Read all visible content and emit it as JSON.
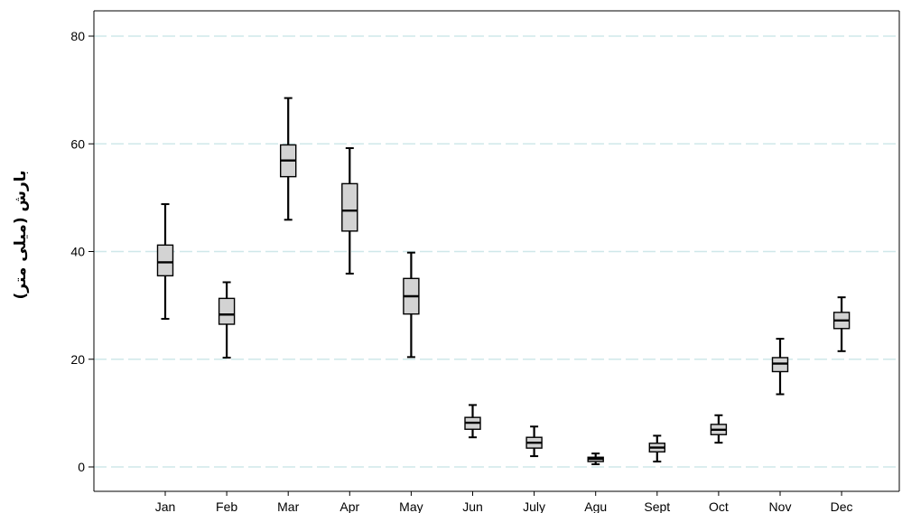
{
  "chart_data": {
    "type": "boxplot",
    "title": "",
    "xlabel": "",
    "ylabel": "بارش (میلی متر)",
    "ylim": [
      -4,
      84
    ],
    "yticks": [
      0,
      20,
      40,
      60,
      80
    ],
    "grid": true,
    "colors": {
      "box_fill": "#d3d3d3",
      "stroke": "#000000",
      "grid": "#cfe8ea",
      "axis": "#000000"
    },
    "categories": [
      "Jan",
      "Feb",
      "Mar",
      "Apr",
      "May",
      "Jun",
      "July",
      "Agu",
      "Sept",
      "Oct",
      "Nov",
      "Dec"
    ],
    "boxes": [
      {
        "min": 27.5,
        "q1": 35.5,
        "median": 38.0,
        "q3": 41.2,
        "max": 48.8
      },
      {
        "min": 20.3,
        "q1": 26.5,
        "median": 28.3,
        "q3": 31.3,
        "max": 34.3
      },
      {
        "min": 45.9,
        "q1": 53.9,
        "median": 56.9,
        "q3": 59.8,
        "max": 68.5
      },
      {
        "min": 35.9,
        "q1": 43.8,
        "median": 47.6,
        "q3": 52.6,
        "max": 59.2
      },
      {
        "min": 20.4,
        "q1": 28.4,
        "median": 31.7,
        "q3": 35.0,
        "max": 39.8
      },
      {
        "min": 5.5,
        "q1": 7.0,
        "median": 8.2,
        "q3": 9.2,
        "max": 11.5
      },
      {
        "min": 2.0,
        "q1": 3.5,
        "median": 4.5,
        "q3": 5.5,
        "max": 7.5
      },
      {
        "min": 0.5,
        "q1": 1.0,
        "median": 1.5,
        "q3": 1.8,
        "max": 2.5
      },
      {
        "min": 1.0,
        "q1": 2.8,
        "median": 3.6,
        "q3": 4.4,
        "max": 5.8
      },
      {
        "min": 4.5,
        "q1": 6.0,
        "median": 6.9,
        "q3": 7.9,
        "max": 9.6
      },
      {
        "min": 13.5,
        "q1": 17.7,
        "median": 19.2,
        "q3": 20.3,
        "max": 23.8
      },
      {
        "min": 21.5,
        "q1": 25.7,
        "median": 27.2,
        "q3": 28.7,
        "max": 31.5
      }
    ]
  }
}
